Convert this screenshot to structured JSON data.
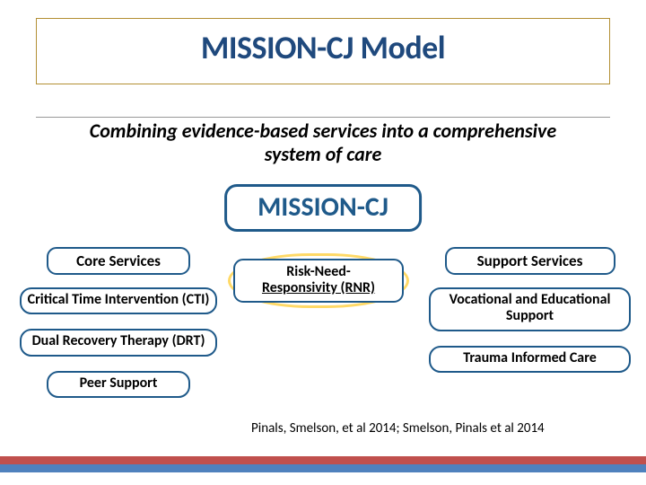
{
  "title": "MISSION-CJ Model",
  "subtitle_line1": "Combining evidence-based services into a comprehensive",
  "subtitle_line2": "system of care",
  "main_node": "MISSION-CJ",
  "left": {
    "header": "Core Services",
    "items": [
      "Critical Time Intervention (CTI)",
      "Dual Recovery Therapy (DRT)",
      "Peer Support"
    ]
  },
  "middle": {
    "rnr_line1": "Risk-Need-",
    "rnr_line2": "Responsivity (RNR)"
  },
  "right": {
    "header": "Support Services",
    "items": [
      "Vocational and Educational Support",
      "Trauma Informed Care"
    ]
  },
  "citation": "Pinals, Smelson, et al 2014; Smelson, Pinals et al 2014",
  "colors": {
    "title_color": "#1f497d",
    "node_border": "#1f5a8a",
    "halo": "#ffd966",
    "footer_red": "#c0504d",
    "footer_blue": "#4f81bd",
    "title_border": "#b38f33"
  }
}
